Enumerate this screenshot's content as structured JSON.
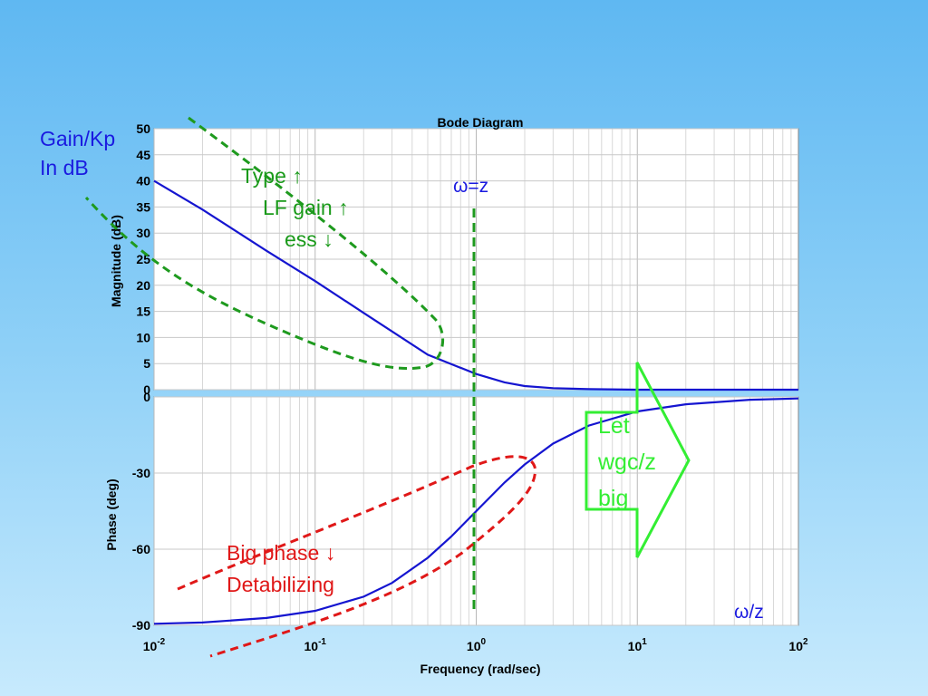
{
  "chart_data": {
    "type": "line",
    "title": "Bode Diagram",
    "xlabel": "Frequency  (rad/sec)",
    "x_scale": "log",
    "x_range": [
      0.01,
      100
    ],
    "x_ticks": [
      0.01,
      0.1,
      1,
      10,
      100
    ],
    "x_tick_labels": [
      {
        "base": "10",
        "exp": "-2"
      },
      {
        "base": "10",
        "exp": "-1"
      },
      {
        "base": "10",
        "exp": "0"
      },
      {
        "base": "10",
        "exp": "1"
      },
      {
        "base": "10",
        "exp": "2"
      }
    ],
    "grid": true,
    "panels": [
      {
        "id": "magnitude",
        "ylabel": "Magnitude (dB)",
        "ylim": [
          0,
          50
        ],
        "yticks": [
          0,
          5,
          10,
          15,
          20,
          25,
          30,
          35,
          40,
          45,
          50
        ],
        "series": [
          {
            "color": "#1515d0",
            "x": [
              0.01,
              0.02,
              0.05,
              0.1,
              0.2,
              0.5,
              1,
              1.5,
              2,
              3,
              5,
              10,
              20,
              100
            ],
            "y": [
              40,
              34.5,
              26.6,
              20.8,
              14.7,
              6.7,
              3.0,
              1.4,
              0.7,
              0.3,
              0.1,
              0,
              0,
              0
            ]
          }
        ]
      },
      {
        "id": "phase",
        "ylabel": "Phase (deg)",
        "ylim": [
          -90,
          0
        ],
        "yticks": [
          0,
          -30,
          -60,
          -90
        ],
        "series": [
          {
            "color": "#1515d0",
            "x": [
              0.01,
              0.02,
              0.05,
              0.1,
              0.2,
              0.3,
              0.5,
              0.7,
              1,
              1.5,
              2,
              3,
              5,
              10,
              20,
              50,
              100
            ],
            "y": [
              -89.4,
              -88.9,
              -87.1,
              -84.3,
              -78.7,
              -73.3,
              -63.4,
              -55,
              -45,
              -33.7,
              -26.6,
              -18.4,
              -11.3,
              -5.7,
              -2.9,
              -1.1,
              -0.6
            ]
          }
        ]
      }
    ],
    "annotations": {
      "gain_label": [
        "Gain/Kp",
        "In dB"
      ],
      "type_label": [
        "Type ↑",
        "LF gain ↑",
        "ess ↓"
      ],
      "omega_z": "ω=z",
      "let_label": [
        "Let",
        "wgc/z",
        "big"
      ],
      "phase_label": [
        "Big phase ↓",
        "Detabilizing"
      ],
      "omega_over_z": "ω/z"
    },
    "annotation_colors": {
      "gain": "#1a1ae0",
      "type": "#1a9a1a",
      "dashed_green": "#1e9a1e",
      "omega": "#1a1ae0",
      "arrow": "#33ee33",
      "phase": "#e01818",
      "dashed_red": "#e01818"
    }
  }
}
